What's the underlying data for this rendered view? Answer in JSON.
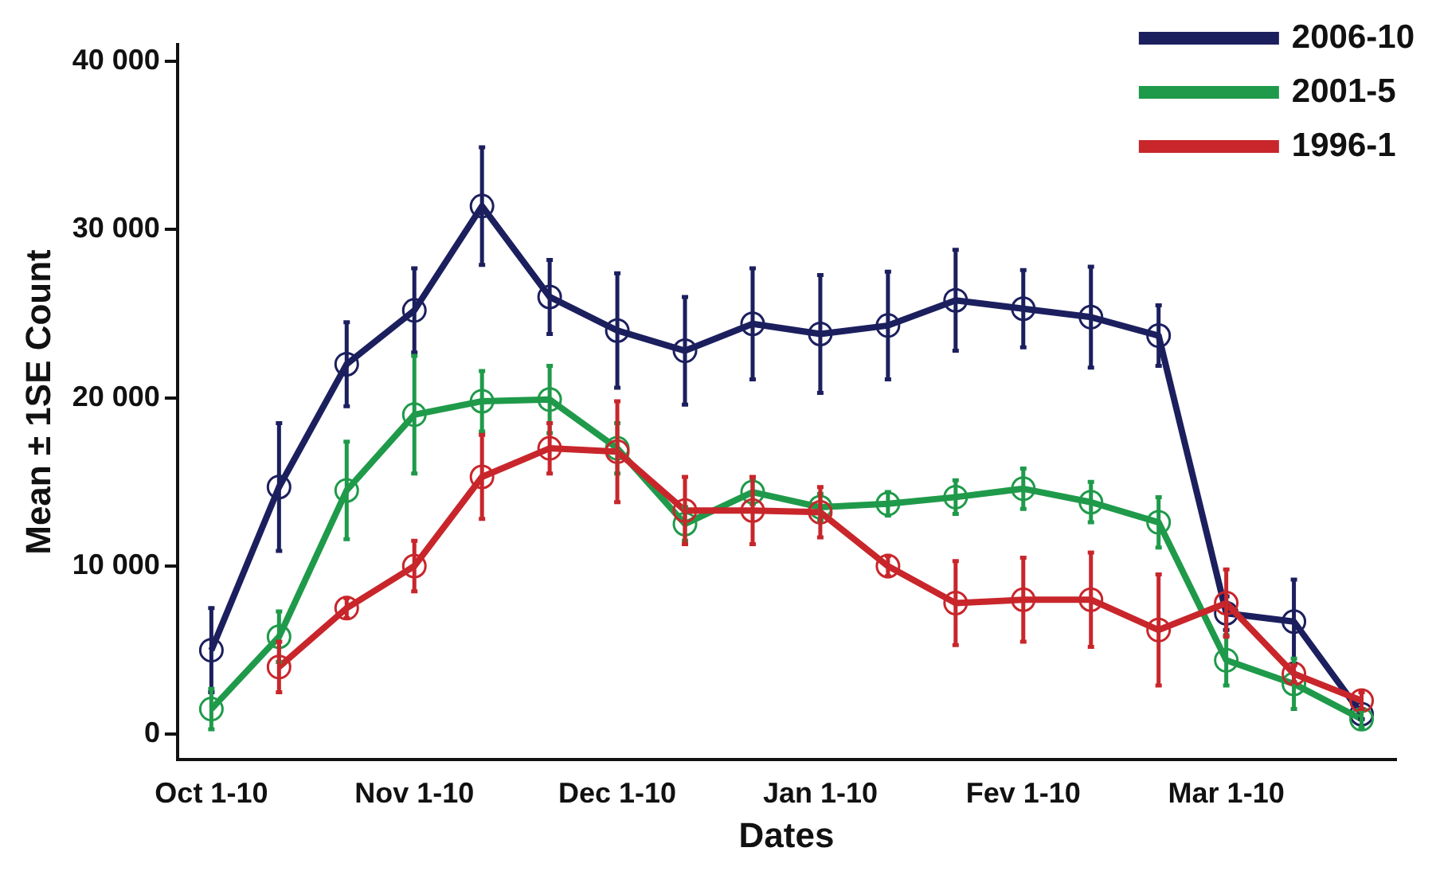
{
  "chart_data": {
    "type": "line",
    "xlabel": "Dates",
    "ylabel": "Mean ± 1SE Count",
    "categories": [
      "Oct 1-10",
      null,
      null,
      "Nov 1-10",
      null,
      null,
      "Dec 1-10",
      null,
      null,
      "Jan 1-10",
      null,
      null,
      "Fev 1-10",
      null,
      null,
      "Mar 1-10",
      null,
      null
    ],
    "series": [
      {
        "name": "2006-10",
        "color": "#1c1f5e",
        "values": [
          5000,
          14700,
          22000,
          25200,
          31400,
          26000,
          24000,
          22800,
          24400,
          23800,
          24300,
          25800,
          25300,
          24800,
          23700,
          7200,
          6700,
          1200
        ],
        "errors": [
          2500,
          3800,
          2500,
          2500,
          3500,
          2200,
          3400,
          3200,
          3300,
          3500,
          3200,
          3000,
          2300,
          3000,
          1800,
          1000,
          2500,
          300
        ]
      },
      {
        "name": "2001-5",
        "color": "#1f9a4a",
        "values": [
          1500,
          5800,
          14500,
          19000,
          19800,
          19900,
          17000,
          12500,
          14400,
          13500,
          13700,
          14100,
          14600,
          13800,
          12600,
          4400,
          3000,
          900
        ],
        "errors": [
          1200,
          1500,
          2900,
          3500,
          1800,
          2000,
          1500,
          1000,
          700,
          800,
          700,
          1000,
          1200,
          1200,
          1500,
          1500,
          1500,
          500
        ]
      },
      {
        "name": "1996-1",
        "color": "#c8262b",
        "values": [
          null,
          4000,
          7500,
          10000,
          15300,
          17000,
          16800,
          13300,
          13300,
          13200,
          10000,
          7800,
          8000,
          8000,
          6200,
          7800,
          3600,
          2000
        ],
        "errors": [
          null,
          1500,
          600,
          1500,
          2500,
          1500,
          3000,
          2000,
          2000,
          1500,
          600,
          2500,
          2500,
          2800,
          3300,
          2000,
          500,
          500
        ]
      }
    ],
    "ylim": [
      -1500,
      41000
    ],
    "yticks": [
      {
        "value": 0,
        "label": "0"
      },
      {
        "value": 10000,
        "label": "10 000"
      },
      {
        "value": 20000,
        "label": "20 000"
      },
      {
        "value": 30000,
        "label": "30 000"
      },
      {
        "value": 40000,
        "label": "40 000"
      }
    ],
    "grid": false,
    "legend": "top right",
    "marker": "circle",
    "line_style": "solid"
  }
}
